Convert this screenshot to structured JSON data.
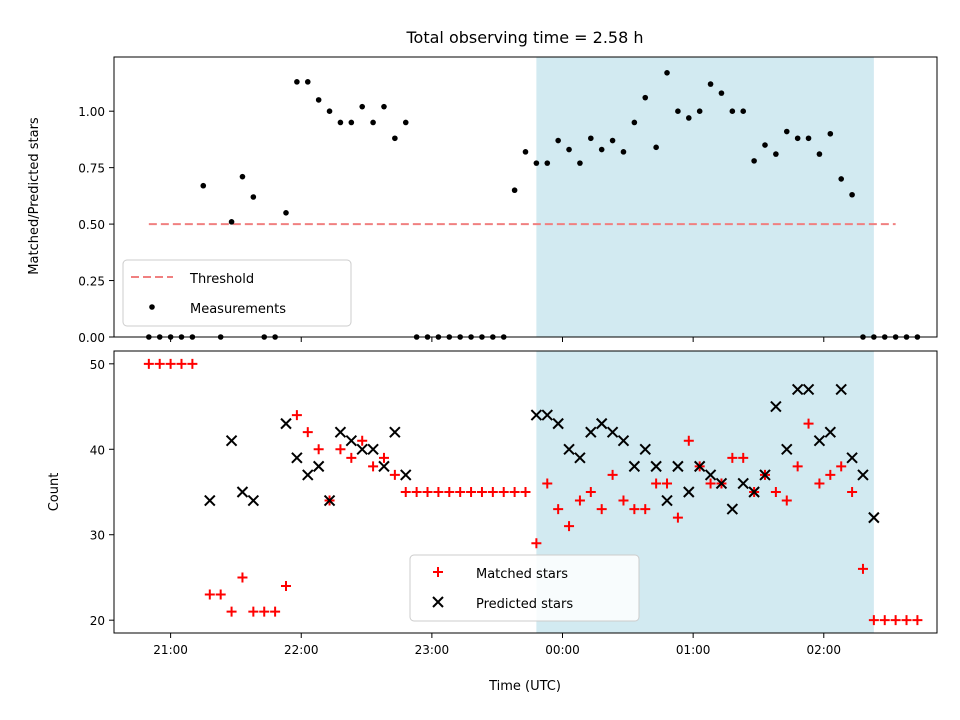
{
  "chart_data": [
    {
      "type": "scatter",
      "title": "Total observing time = 2.58 h",
      "ylabel": "Matched/Predicted stars",
      "xlabel": "",
      "xlim": [
        "20:34",
        "02:52"
      ],
      "ylim": [
        0,
        1.24
      ],
      "x_ticks": [
        "21:00",
        "22:00",
        "23:00",
        "00:00",
        "01:00",
        "02:00"
      ],
      "y_ticks": [
        "0.00",
        "0.25",
        "0.50",
        "0.75",
        "1.00"
      ],
      "highlight_span": [
        "23:48",
        "02:23"
      ],
      "highlight_color": "#add8e6",
      "threshold": {
        "name": "Threshold",
        "y": 0.5,
        "x_range": [
          "20:50",
          "02:33"
        ],
        "color": "#f08080"
      },
      "series": [
        {
          "name": "Measurements",
          "color": "#000000",
          "x": [
            "20:50",
            "20:55",
            "21:00",
            "21:05",
            "21:10",
            "21:15",
            "21:23",
            "21:28",
            "21:33",
            "21:38",
            "21:43",
            "21:48",
            "21:53",
            "21:58",
            "22:03",
            "22:08",
            "22:13",
            "22:18",
            "22:23",
            "22:28",
            "22:33",
            "22:38",
            "22:43",
            "22:48",
            "22:53",
            "22:58",
            "23:03",
            "23:08",
            "23:13",
            "23:18",
            "23:23",
            "23:28",
            "23:33",
            "23:38",
            "23:43",
            "23:48",
            "23:53",
            "23:58",
            "24:03",
            "24:08",
            "24:13",
            "24:18",
            "24:23",
            "24:28",
            "24:33",
            "24:38",
            "24:43",
            "24:48",
            "24:53",
            "24:58",
            "25:03",
            "25:08",
            "25:13",
            "25:18",
            "25:23",
            "25:28",
            "25:33",
            "25:38",
            "25:43",
            "25:48",
            "25:53",
            "25:58",
            "26:03",
            "26:08",
            "26:13",
            "26:18",
            "26:23",
            "26:28",
            "26:33",
            "26:38",
            "26:43"
          ],
          "y": [
            0,
            0,
            0,
            0,
            0,
            0.67,
            0,
            0.51,
            0.71,
            0.62,
            0,
            0,
            0.55,
            1.13,
            1.13,
            1.05,
            1.0,
            0.95,
            0.95,
            1.02,
            0.95,
            1.02,
            0.88,
            0.95,
            0,
            0,
            0,
            0,
            0,
            0,
            0,
            0,
            0,
            0.65,
            0.82,
            0.77,
            0.77,
            0.87,
            0.83,
            0.77,
            0.88,
            0.83,
            0.87,
            0.82,
            0.95,
            1.06,
            0.84,
            1.17,
            1.0,
            0.97,
            1.0,
            1.12,
            1.08,
            1.0,
            1.0,
            0.78,
            0.85,
            0.81,
            0.91,
            0.88,
            0.88,
            0.81,
            0.9,
            0.7,
            0.63,
            0,
            0,
            0,
            0,
            0,
            0
          ]
        }
      ]
    },
    {
      "type": "scatter",
      "title": "",
      "xlabel": "Time (UTC)",
      "ylabel": "Count",
      "xlim": [
        "20:34",
        "02:52"
      ],
      "ylim": [
        18.5,
        51.5
      ],
      "x_ticks": [
        "21:00",
        "22:00",
        "23:00",
        "00:00",
        "01:00",
        "02:00"
      ],
      "y_ticks": [
        "20",
        "30",
        "40",
        "50"
      ],
      "highlight_span": [
        "23:48",
        "02:23"
      ],
      "highlight_color": "#add8e6",
      "series": [
        {
          "name": "Matched stars",
          "marker": "+",
          "color": "#ff0000",
          "x": [
            "20:50",
            "20:55",
            "21:00",
            "21:05",
            "21:10",
            "21:18",
            "21:23",
            "21:28",
            "21:33",
            "21:38",
            "21:43",
            "21:48",
            "21:53",
            "21:58",
            "22:03",
            "22:08",
            "22:13",
            "22:18",
            "22:23",
            "22:28",
            "22:33",
            "22:38",
            "22:43",
            "22:48",
            "22:53",
            "22:58",
            "23:03",
            "23:08",
            "23:13",
            "23:18",
            "23:23",
            "23:28",
            "23:33",
            "23:38",
            "23:43",
            "23:48",
            "23:53",
            "23:58",
            "24:03",
            "24:08",
            "24:13",
            "24:18",
            "24:23",
            "24:28",
            "24:33",
            "24:38",
            "24:43",
            "24:48",
            "24:53",
            "24:58",
            "25:03",
            "25:08",
            "25:13",
            "25:18",
            "25:23",
            "25:28",
            "25:33",
            "25:38",
            "25:43",
            "25:48",
            "25:53",
            "25:58",
            "26:03",
            "26:08",
            "26:13",
            "26:18",
            "26:23",
            "26:28",
            "26:33",
            "26:38",
            "26:43"
          ],
          "y": [
            50,
            50,
            50,
            50,
            50,
            23,
            23,
            21,
            25,
            21,
            21,
            21,
            24,
            44,
            42,
            40,
            34,
            40,
            39,
            41,
            38,
            39,
            37,
            35,
            35,
            35,
            35,
            35,
            35,
            35,
            35,
            35,
            35,
            35,
            35,
            29,
            36,
            33,
            31,
            34,
            35,
            33,
            37,
            34,
            33,
            33,
            36,
            36,
            32,
            41,
            38,
            36,
            36,
            39,
            39,
            35,
            37,
            35,
            34,
            38,
            43,
            36,
            37,
            38,
            35,
            26,
            20,
            20,
            20,
            20,
            20
          ]
        },
        {
          "name": "Predicted stars",
          "marker": "x",
          "color": "#000000",
          "x": [
            "21:18",
            "21:28",
            "21:33",
            "21:38",
            "21:53",
            "21:58",
            "22:03",
            "22:08",
            "22:13",
            "22:18",
            "22:23",
            "22:28",
            "22:33",
            "22:38",
            "22:43",
            "22:48",
            "23:48",
            "23:53",
            "23:58",
            "24:03",
            "24:08",
            "24:13",
            "24:18",
            "24:23",
            "24:28",
            "24:33",
            "24:38",
            "24:43",
            "24:48",
            "24:53",
            "24:58",
            "25:03",
            "25:08",
            "25:13",
            "25:18",
            "25:23",
            "25:28",
            "25:33",
            "25:38",
            "25:43",
            "25:48",
            "25:53",
            "25:58",
            "26:03",
            "26:08",
            "26:13",
            "26:18",
            "26:23"
          ],
          "y": [
            34,
            41,
            35,
            34,
            43,
            39,
            37,
            38,
            34,
            42,
            41,
            40,
            40,
            38,
            42,
            37,
            44,
            44,
            43,
            40,
            39,
            42,
            43,
            42,
            41,
            38,
            40,
            38,
            34,
            38,
            35,
            38,
            37,
            36,
            33,
            36,
            35,
            37,
            45,
            40,
            47,
            47,
            41,
            42,
            47,
            39,
            37,
            32
          ]
        }
      ]
    }
  ]
}
